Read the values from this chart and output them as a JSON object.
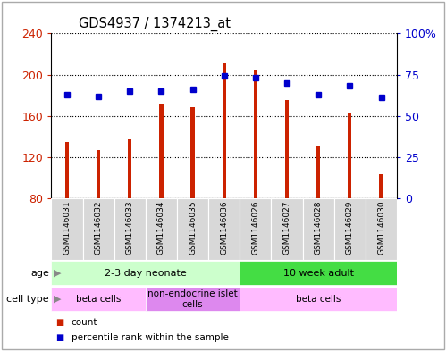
{
  "title": "GDS4937 / 1374213_at",
  "samples": [
    "GSM1146031",
    "GSM1146032",
    "GSM1146033",
    "GSM1146034",
    "GSM1146035",
    "GSM1146036",
    "GSM1146026",
    "GSM1146027",
    "GSM1146028",
    "GSM1146029",
    "GSM1146030"
  ],
  "counts": [
    135,
    127,
    137,
    172,
    168,
    212,
    205,
    175,
    130,
    162,
    103
  ],
  "percentiles": [
    63,
    62,
    65,
    65,
    66,
    74,
    73,
    70,
    63,
    68,
    61
  ],
  "ymin": 80,
  "ymax": 240,
  "yticks_left": [
    80,
    120,
    160,
    200,
    240
  ],
  "yticks_right": [
    0,
    25,
    50,
    75,
    100
  ],
  "bar_color": "#cc2200",
  "dot_color": "#0000cc",
  "age_groups": [
    {
      "label": "2-3 day neonate",
      "start": 0,
      "end": 6,
      "color": "#ccffcc"
    },
    {
      "label": "10 week adult",
      "start": 6,
      "end": 11,
      "color": "#44dd44"
    }
  ],
  "cell_type_groups": [
    {
      "label": "beta cells",
      "start": 0,
      "end": 3,
      "color": "#ffbbff"
    },
    {
      "label": "non-endocrine islet\ncells",
      "start": 3,
      "end": 6,
      "color": "#dd88ee"
    },
    {
      "label": "beta cells",
      "start": 6,
      "end": 11,
      "color": "#ffbbff"
    }
  ],
  "legend_items": [
    {
      "label": "count",
      "color": "#cc2200"
    },
    {
      "label": "percentile rank within the sample",
      "color": "#0000cc"
    }
  ],
  "bar_width": 0.12,
  "dot_size": 5
}
